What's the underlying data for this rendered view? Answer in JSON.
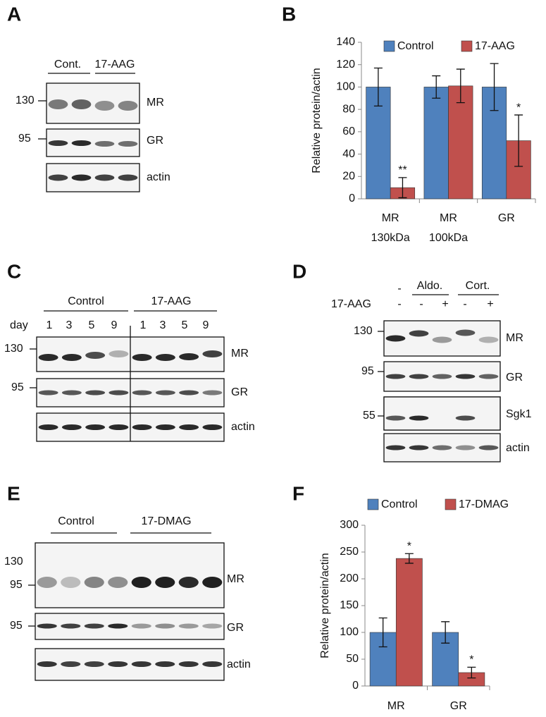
{
  "panels": {
    "A": {
      "letter": "A",
      "groups": [
        "Cont.",
        "17-AAG"
      ],
      "markers": [
        "130",
        "95"
      ],
      "rows": [
        "MR",
        "GR",
        "actin"
      ]
    },
    "C": {
      "letter": "C",
      "groups": [
        "Control",
        "17-AAG"
      ],
      "day_label": "day",
      "days": [
        "1",
        "3",
        "5",
        "9",
        "1",
        "3",
        "5",
        "9"
      ],
      "markers": [
        "130",
        "95"
      ],
      "rows": [
        "MR",
        "GR",
        "actin"
      ]
    },
    "D": {
      "letter": "D",
      "first_sign": "-",
      "groups": [
        "Aldo.",
        "Cort."
      ],
      "treatment_label": "17-AAG",
      "signs": [
        "-",
        "-",
        "+",
        "-",
        "+"
      ],
      "markers": [
        "130",
        "95",
        "55"
      ],
      "rows": [
        "MR",
        "GR",
        "Sgk1",
        "actin"
      ]
    },
    "E": {
      "letter": "E",
      "groups": [
        "Control",
        "17-DMAG"
      ],
      "markers": [
        "130",
        "95",
        "95"
      ],
      "rows": [
        "MR",
        "GR",
        "actin"
      ]
    }
  },
  "chart_data": [
    {
      "type": "bar",
      "letter": "B",
      "y_label": "Relative protein/actin",
      "categories": [
        "MR 130kDa",
        "MR 100kDa",
        "GR"
      ],
      "series": [
        {
          "name": "Control",
          "color": "#4f81bd",
          "values": [
            100,
            100,
            100
          ],
          "errors": [
            17,
            10,
            21
          ],
          "significance": [
            null,
            null,
            null
          ]
        },
        {
          "name": "17-AAG",
          "color": "#c0504d",
          "values": [
            10,
            101,
            52
          ],
          "errors": [
            9,
            15,
            23
          ],
          "significance": [
            "**",
            null,
            "*"
          ]
        }
      ],
      "ylim": [
        0,
        140
      ],
      "yticks": [
        0,
        20,
        40,
        60,
        80,
        100,
        120,
        140
      ],
      "legend": "top"
    },
    {
      "type": "bar",
      "letter": "F",
      "y_label": "Relative protein/actin",
      "categories": [
        "MR",
        "GR"
      ],
      "series": [
        {
          "name": "Control",
          "color": "#4f81bd",
          "values": [
            100,
            100
          ],
          "errors": [
            27,
            20
          ],
          "significance": [
            null,
            null
          ]
        },
        {
          "name": "17-DMAG",
          "color": "#c0504d",
          "values": [
            238,
            25
          ],
          "errors": [
            9,
            10
          ],
          "significance": [
            "*",
            "*"
          ]
        }
      ],
      "ylim": [
        0,
        300
      ],
      "yticks": [
        0,
        50,
        100,
        150,
        200,
        250,
        300
      ],
      "legend": "top"
    }
  ]
}
